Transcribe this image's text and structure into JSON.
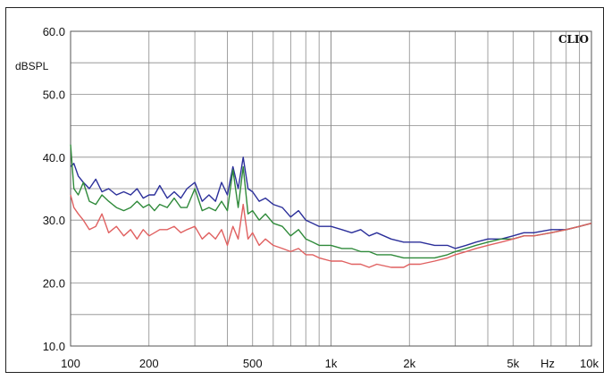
{
  "chart_data": {
    "type": "line",
    "brand": "CLIO",
    "ylabel": "dBSPL",
    "xunit": "Hz",
    "xscale": "log",
    "xlim": [
      100,
      10000
    ],
    "ylim": [
      10,
      60
    ],
    "yticks": [
      {
        "value": 60,
        "label": "60.0"
      },
      {
        "value": 50,
        "label": "50.0"
      },
      {
        "value": 40,
        "label": "40.0"
      },
      {
        "value": 30,
        "label": "30.0"
      },
      {
        "value": 20,
        "label": "20.0"
      },
      {
        "value": 10,
        "label": "10.0"
      }
    ],
    "xticks": [
      {
        "value": 100,
        "label": "100"
      },
      {
        "value": 200,
        "label": "200"
      },
      {
        "value": 500,
        "label": "500"
      },
      {
        "value": 1000,
        "label": "1k"
      },
      {
        "value": 2000,
        "label": "2k"
      },
      {
        "value": 5000,
        "label": "5k"
      },
      {
        "value": 10000,
        "label": "10k"
      }
    ],
    "grid": true,
    "series": [
      {
        "color": "#2b2f9a",
        "x": [
          100,
          103,
          107,
          112,
          118,
          125,
          132,
          140,
          150,
          160,
          170,
          180,
          190,
          200,
          210,
          220,
          235,
          250,
          265,
          280,
          300,
          320,
          340,
          360,
          380,
          400,
          420,
          440,
          460,
          480,
          500,
          530,
          560,
          600,
          650,
          700,
          750,
          800,
          850,
          900,
          1000,
          1100,
          1200,
          1300,
          1400,
          1500,
          1700,
          1900,
          2000,
          2200,
          2500,
          2800,
          3000,
          3300,
          3600,
          4000,
          4500,
          5000,
          5500,
          6000,
          7000,
          8000,
          9000,
          10000
        ],
        "y": [
          38.5,
          39,
          37,
          36,
          35,
          36.5,
          34.5,
          35,
          34,
          34.5,
          34,
          35,
          33.5,
          34,
          34,
          35.5,
          33.5,
          34.5,
          33.5,
          35,
          36,
          33,
          34,
          33,
          36,
          34,
          38.5,
          35,
          40,
          35,
          34.5,
          33,
          33.5,
          32.5,
          32,
          30.5,
          31.5,
          30,
          29.5,
          29,
          29,
          28.5,
          28,
          28.5,
          27.5,
          28,
          27,
          26.5,
          26.5,
          26.5,
          26,
          26,
          25.5,
          26,
          26.5,
          27,
          27,
          27.5,
          28,
          28,
          28.5,
          28.5,
          29,
          29.5
        ]
      },
      {
        "color": "#2f8a3a",
        "x": [
          100,
          103,
          107,
          112,
          118,
          125,
          132,
          140,
          150,
          160,
          170,
          180,
          190,
          200,
          210,
          220,
          235,
          250,
          265,
          280,
          300,
          320,
          340,
          360,
          380,
          400,
          420,
          440,
          460,
          480,
          500,
          530,
          560,
          600,
          650,
          700,
          750,
          800,
          850,
          900,
          1000,
          1100,
          1200,
          1300,
          1400,
          1500,
          1700,
          1900,
          2000,
          2200,
          2500,
          2800,
          3000,
          3300,
          3600,
          4000,
          4500,
          5000,
          5500,
          6000,
          7000,
          8000,
          9000,
          10000
        ],
        "y": [
          42,
          35,
          34,
          36,
          33,
          32.5,
          34,
          33,
          32,
          31.5,
          32,
          33,
          32,
          32.5,
          31.5,
          32.5,
          32,
          33.5,
          32,
          32,
          35,
          31.5,
          32,
          31.5,
          33,
          31.5,
          38,
          32,
          38.5,
          31,
          31.5,
          30,
          31,
          29.5,
          29,
          27.5,
          28.5,
          27,
          26.5,
          26,
          26,
          25.5,
          25.5,
          25,
          25,
          24.5,
          24.5,
          24,
          24,
          24,
          24,
          24.5,
          25,
          25.5,
          26,
          26.5,
          27,
          27,
          27.5,
          27.5,
          28,
          28.5,
          29,
          29.5
        ]
      },
      {
        "color": "#e06060",
        "x": [
          100,
          103,
          107,
          112,
          118,
          125,
          132,
          140,
          150,
          160,
          170,
          180,
          190,
          200,
          210,
          220,
          235,
          250,
          265,
          280,
          300,
          320,
          340,
          360,
          380,
          400,
          420,
          440,
          460,
          480,
          500,
          530,
          560,
          600,
          650,
          700,
          750,
          800,
          850,
          900,
          1000,
          1100,
          1200,
          1300,
          1400,
          1500,
          1700,
          1900,
          2000,
          2200,
          2500,
          2800,
          3000,
          3300,
          3600,
          4000,
          4500,
          5000,
          5500,
          6000,
          7000,
          8000,
          9000,
          10000
        ],
        "y": [
          34,
          32,
          31,
          30,
          28.5,
          29,
          31,
          28,
          29,
          27.5,
          28.5,
          27,
          28.5,
          27.5,
          28,
          28.5,
          28.5,
          29,
          28,
          28.5,
          29,
          27,
          28,
          27,
          28.5,
          26,
          29,
          27,
          32.5,
          27,
          28,
          26,
          27,
          26,
          25.5,
          25,
          25.5,
          24.5,
          24.5,
          24,
          23.5,
          23.5,
          23,
          23,
          22.5,
          23,
          22.5,
          22.5,
          23,
          23,
          23.5,
          24,
          24.5,
          25,
          25.5,
          26,
          26.5,
          27,
          27.5,
          27.5,
          28,
          28.5,
          29,
          29.5
        ]
      }
    ]
  }
}
